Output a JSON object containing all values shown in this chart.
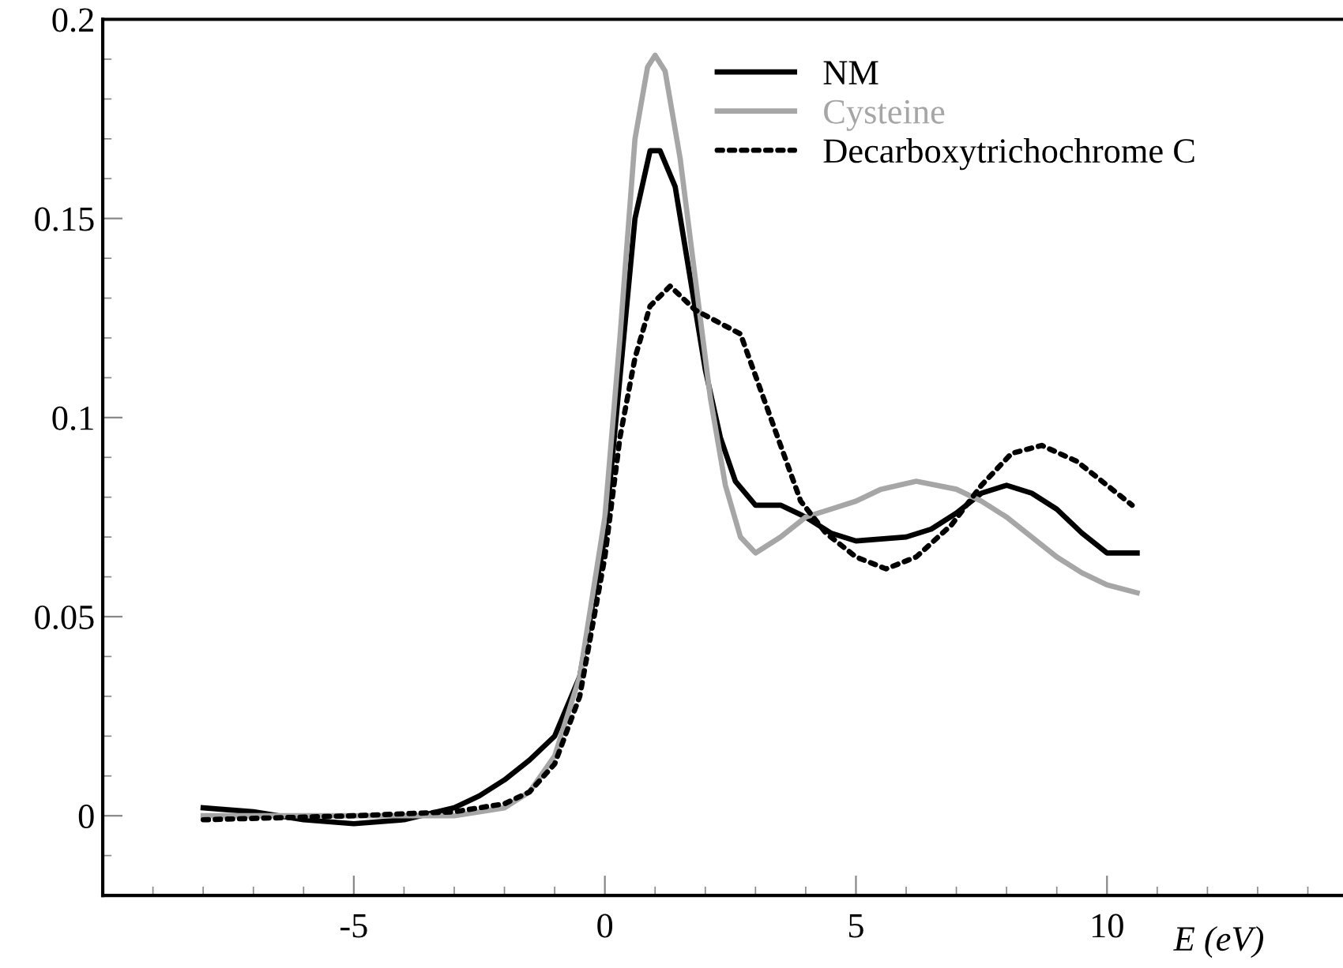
{
  "chart_data": {
    "type": "line",
    "xlabel": "E (eV)",
    "xlim": [
      -10,
      14.7
    ],
    "ylim": [
      -0.02,
      0.2
    ],
    "xticks": [
      -5,
      0,
      5,
      10
    ],
    "yticks": [
      0,
      0.05,
      0.1,
      0.15,
      0.2
    ],
    "grid": false,
    "legend": "top right",
    "marker": "none",
    "series": [
      {
        "name": "NM",
        "color": "#000000",
        "line_style": "solid",
        "x": [
          -8,
          -7,
          -6,
          -5,
          -4,
          -3,
          -2.5,
          -2,
          -1.5,
          -1,
          -0.5,
          0,
          0.3,
          0.6,
          0.9,
          1.1,
          1.4,
          1.7,
          2,
          2.3,
          2.6,
          3,
          3.5,
          4,
          4.5,
          5,
          6,
          6.5,
          7,
          7.5,
          8,
          8.5,
          9,
          9.5,
          10,
          10.6
        ],
        "values": [
          0.002,
          0.001,
          -0.001,
          -0.002,
          -0.001,
          0.002,
          0.005,
          0.009,
          0.014,
          0.02,
          0.035,
          0.07,
          0.11,
          0.15,
          0.167,
          0.167,
          0.158,
          0.135,
          0.112,
          0.095,
          0.084,
          0.078,
          0.078,
          0.075,
          0.071,
          0.069,
          0.07,
          0.072,
          0.076,
          0.081,
          0.083,
          0.081,
          0.077,
          0.071,
          0.066,
          0.066
        ]
      },
      {
        "name": "Cysteine",
        "color": "#a6a6a6",
        "line_style": "solid",
        "x": [
          -8,
          -6,
          -4,
          -3,
          -2,
          -1.5,
          -1,
          -0.5,
          0,
          0.3,
          0.6,
          0.85,
          1,
          1.2,
          1.5,
          1.8,
          2.1,
          2.4,
          2.7,
          3,
          3.5,
          4,
          4.5,
          5,
          5.5,
          6.2,
          7,
          7.5,
          8,
          8.5,
          9,
          9.5,
          10,
          10.6
        ],
        "values": [
          0,
          0,
          0,
          0,
          0.002,
          0.006,
          0.015,
          0.035,
          0.075,
          0.12,
          0.17,
          0.188,
          0.191,
          0.187,
          0.165,
          0.135,
          0.105,
          0.083,
          0.07,
          0.066,
          0.07,
          0.075,
          0.077,
          0.079,
          0.082,
          0.084,
          0.082,
          0.079,
          0.075,
          0.07,
          0.065,
          0.061,
          0.058,
          0.056
        ]
      },
      {
        "name": "Decarboxytrichochrome C",
        "color": "#000000",
        "line_style": "dotted",
        "x": [
          -8,
          -5,
          -3,
          -2,
          -1.5,
          -1,
          -0.5,
          0,
          0.3,
          0.6,
          0.9,
          1.3,
          1.8,
          2.7,
          3.1,
          3.5,
          3.9,
          4.4,
          5,
          5.6,
          6.2,
          6.9,
          7.5,
          8.1,
          8.7,
          9.4,
          10,
          10.5
        ],
        "values": [
          -0.001,
          0,
          0.001,
          0.003,
          0.006,
          0.013,
          0.03,
          0.065,
          0.095,
          0.115,
          0.128,
          0.133,
          0.127,
          0.121,
          0.107,
          0.093,
          0.079,
          0.071,
          0.065,
          0.062,
          0.065,
          0.073,
          0.083,
          0.091,
          0.093,
          0.089,
          0.083,
          0.078
        ]
      }
    ]
  }
}
